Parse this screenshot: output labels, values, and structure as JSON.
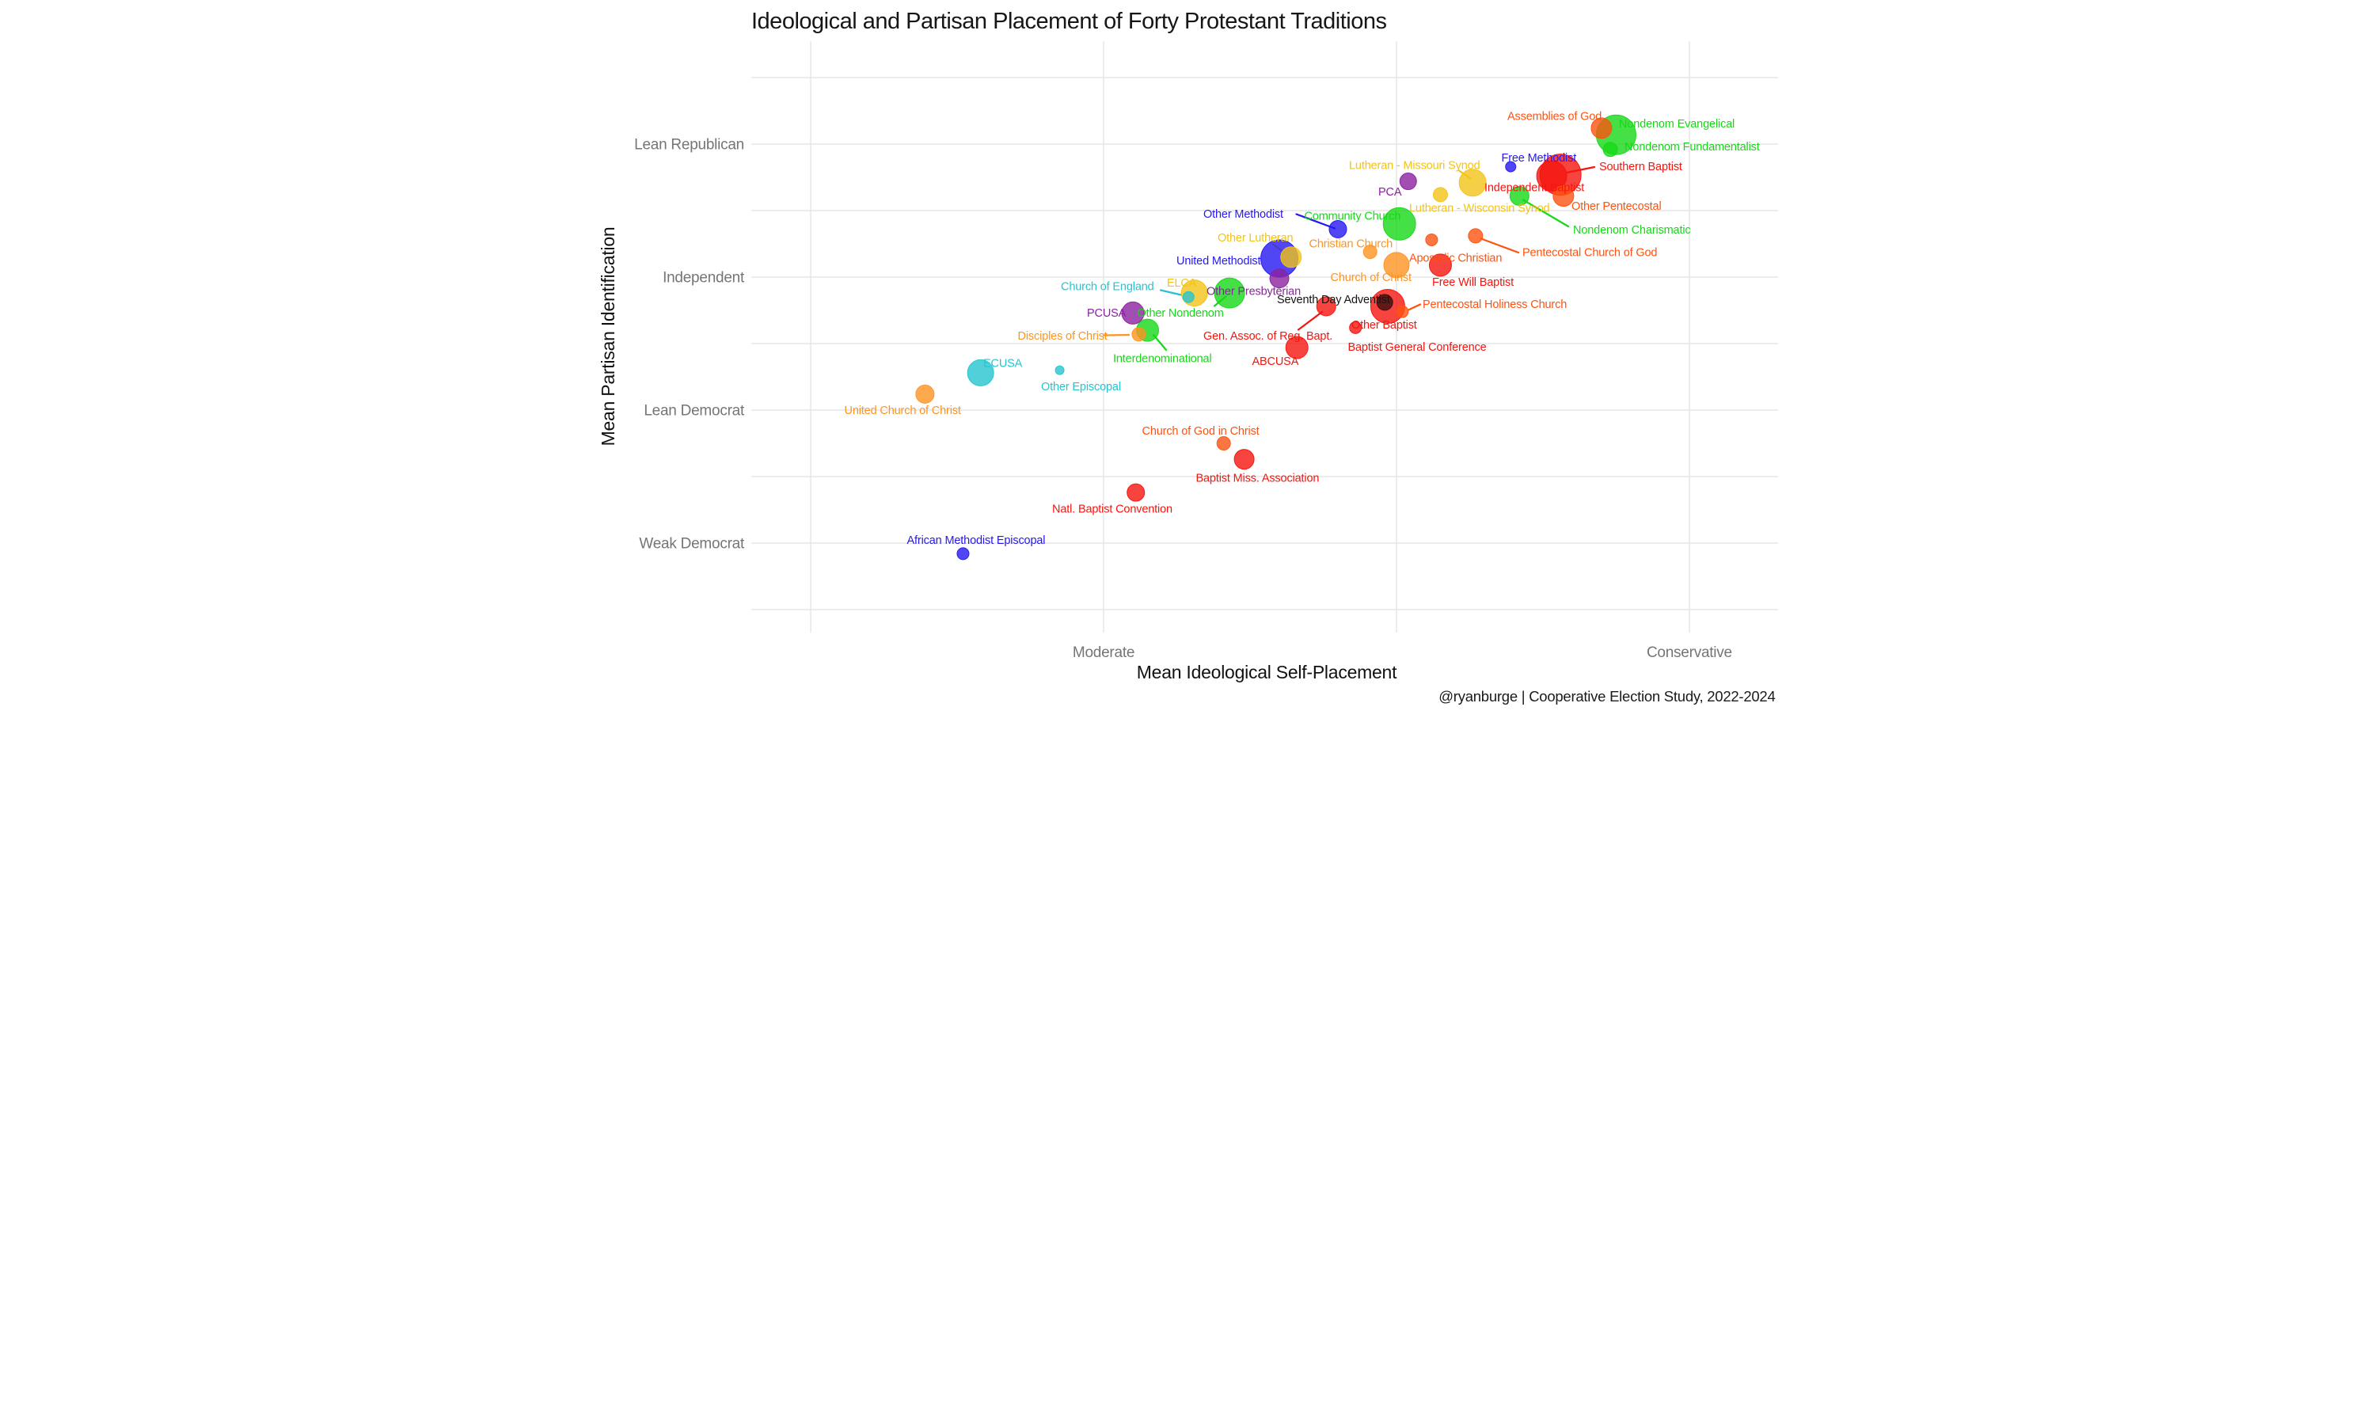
{
  "title": "Ideological and Partisan Placement of Forty Protestant Traditions",
  "caption": "@ryanburge | Cooperative Election Study, 2022-2024",
  "palette": {
    "baptist": "#f5150f",
    "methodist": "#2618f0",
    "nondenom": "#16d816",
    "lutheran": "#f3c317",
    "presbyterian": "#8b22a0",
    "episcopal": "#27c4cf",
    "pentecostal": "#fd5310",
    "restorationist": "#fe9420",
    "adventist": "#3c0f0c"
  },
  "chart_data": {
    "type": "scatter",
    "title": "Ideological and Partisan Placement of Forty Protestant Traditions",
    "xlabel": "Mean Ideological Self-Placement",
    "ylabel": "Mean Partisan Identification",
    "xlim": [
      1.797,
      5.303
    ],
    "ylim": [
      1.327,
      5.771
    ],
    "grid": {
      "x_values": [
        2,
        3,
        4,
        5
      ],
      "y_values": [
        5.5,
        5,
        4.5,
        4,
        3.5,
        3,
        2.5,
        2,
        1.5
      ]
    },
    "x_ticks": [
      {
        "label": "Moderate",
        "value": 3
      },
      {
        "label": "Conservative",
        "value": 5
      }
    ],
    "y_ticks": [
      {
        "label": "Lean Republican",
        "value": 5
      },
      {
        "label": "Independent",
        "value": 4
      },
      {
        "label": "Lean Democrat",
        "value": 3
      },
      {
        "label": "Weak Democrat",
        "value": 2
      }
    ],
    "legend": "none",
    "points": [
      {
        "name": "Nondenom Evangelical",
        "x": 4.75,
        "y": 5.07,
        "r": 50,
        "family": "nondenom",
        "lx": 2590,
        "ly": 322
      },
      {
        "name": "Nondenom Fundamentalist",
        "x": 4.73,
        "y": 4.96,
        "r": 18,
        "family": "nondenom",
        "lx": 2604,
        "ly": 380
      },
      {
        "name": "Assemblies of God",
        "x": 4.7,
        "y": 5.12,
        "r": 26,
        "family": "pentecostal",
        "lx": 2308,
        "ly": 303
      },
      {
        "name": "Southern Baptist",
        "x": 4.56,
        "y": 4.77,
        "r": 52,
        "family": "baptist",
        "lx": 2540,
        "ly": 430,
        "leader": [
          2528,
          422,
          2458,
          436
        ]
      },
      {
        "name": "Independent Baptist",
        "x": 4.53,
        "y": 4.76,
        "r": 38,
        "family": "baptist",
        "lx": 2250,
        "ly": 483
      },
      {
        "name": "Other Pentecostal",
        "x": 4.57,
        "y": 4.61,
        "r": 26,
        "family": "pentecostal",
        "lx": 2470,
        "ly": 530
      },
      {
        "name": "Nondenom Charismatic",
        "x": 4.42,
        "y": 4.61,
        "r": 24,
        "family": "nondenom",
        "lx": 2474,
        "ly": 590,
        "leader": [
          2348,
          505,
          2462,
          572
        ]
      },
      {
        "name": "Free Methodist",
        "x": 4.39,
        "y": 4.83,
        "r": 13,
        "family": "methodist",
        "lx": 2293,
        "ly": 408
      },
      {
        "name": "Lutheran - Missouri Synod",
        "x": 4.26,
        "y": 4.71,
        "r": 34,
        "family": "lutheran",
        "lx": 1908,
        "ly": 427,
        "leader": [
          2186,
          431,
          2215,
          451
        ]
      },
      {
        "name": "Lutheran - Wisconsin Synod",
        "x": 4.15,
        "y": 4.62,
        "r": 18,
        "family": "lutheran",
        "lx": 2060,
        "ly": 535
      },
      {
        "name": "PCA",
        "x": 4.04,
        "y": 4.72,
        "r": 21,
        "family": "presbyterian",
        "lx": 1982,
        "ly": 494
      },
      {
        "name": "Other Methodist",
        "x": 3.8,
        "y": 4.36,
        "r": 22,
        "family": "methodist",
        "lx": 1540,
        "ly": 550,
        "leader": [
          1775,
          541,
          1872,
          577
        ]
      },
      {
        "name": "Community Church",
        "x": 4.01,
        "y": 4.4,
        "r": 41,
        "family": "nondenom",
        "lx": 1795,
        "ly": 555
      },
      {
        "name": "Other Lutheran",
        "x": 3.64,
        "y": 4.15,
        "r": 26,
        "family": "lutheran",
        "lx": 1576,
        "ly": 610,
        "leader": [
          1716,
          616,
          1750,
          643
        ]
      },
      {
        "name": "United Methodist",
        "x": 3.6,
        "y": 4.14,
        "r": 47,
        "family": "methodist",
        "lx": 1472,
        "ly": 668
      },
      {
        "name": "Christian Church",
        "x": 3.91,
        "y": 4.19,
        "r": 17,
        "family": "restorationist",
        "lx": 1807,
        "ly": 625
      },
      {
        "name": "Church of Christ",
        "x": 4.0,
        "y": 4.09,
        "r": 32,
        "family": "restorationist",
        "lx": 1861,
        "ly": 710
      },
      {
        "name": "Apostolic Christian",
        "x": 4.12,
        "y": 4.28,
        "r": 15,
        "family": "pentecostal",
        "lx": 2060,
        "ly": 661
      },
      {
        "name": "Pentecostal Church of God",
        "x": 4.27,
        "y": 4.31,
        "r": 18,
        "family": "pentecostal",
        "lx": 2346,
        "ly": 647,
        "leader": [
          2242,
          603,
          2336,
          638
        ]
      },
      {
        "name": "Free Will Baptist",
        "x": 4.15,
        "y": 4.09,
        "r": 28,
        "family": "baptist",
        "lx": 2118,
        "ly": 722
      },
      {
        "name": "Seventh Day Adventist",
        "x": 3.96,
        "y": 3.81,
        "r": 20,
        "family": "adventist",
        "label_color": "#151515",
        "lx": 1726,
        "ly": 766
      },
      {
        "name": "Other Baptist",
        "x": 3.97,
        "y": 3.78,
        "r": 43,
        "family": "baptist",
        "lx": 1914,
        "ly": 830
      },
      {
        "name": "Pentecostal Holiness Church",
        "x": 4.02,
        "y": 3.74,
        "r": 15,
        "family": "pentecostal",
        "lx": 2094,
        "ly": 778,
        "leader": [
          2058,
          783,
          2088,
          769
        ]
      },
      {
        "name": "Gen. Assoc. of Reg. Bapt.",
        "x": 3.76,
        "y": 3.78,
        "r": 24,
        "family": "baptist",
        "lx": 1540,
        "ly": 858,
        "leader": [
          1840,
          788,
          1780,
          833
        ]
      },
      {
        "name": "ABCUSA",
        "x": 3.66,
        "y": 3.47,
        "r": 28,
        "family": "baptist",
        "lx": 1663,
        "ly": 922
      },
      {
        "name": "Baptist General Conference",
        "x": 3.86,
        "y": 3.62,
        "r": 15,
        "family": "baptist",
        "lx": 1905,
        "ly": 886
      },
      {
        "name": "Interdenominational",
        "x": 3.15,
        "y": 3.6,
        "r": 28,
        "family": "nondenom",
        "lx": 1312,
        "ly": 915,
        "leader": [
          1414,
          846,
          1446,
          884
        ]
      },
      {
        "name": "Other Nondenom",
        "x": 3.43,
        "y": 3.88,
        "r": 38,
        "family": "nondenom",
        "lx": 1373,
        "ly": 800,
        "leader": [
          1568,
          773,
          1597,
          749
        ]
      },
      {
        "name": "PCUSA",
        "x": 3.1,
        "y": 3.73,
        "r": 28,
        "family": "presbyterian",
        "lx": 1246,
        "ly": 800
      },
      {
        "name": "Disciples of Christ",
        "x": 3.12,
        "y": 3.57,
        "r": 17,
        "family": "restorationist",
        "lx": 1071,
        "ly": 858,
        "leader": [
          1288,
          847,
          1352,
          846
        ]
      },
      {
        "name": "ELCA",
        "x": 3.31,
        "y": 3.88,
        "r": 33,
        "family": "lutheran",
        "lx": 1448,
        "ly": 724
      },
      {
        "name": "Church of England",
        "x": 3.29,
        "y": 3.85,
        "r": 14,
        "family": "episcopal",
        "lx": 1180,
        "ly": 733,
        "leader": [
          1432,
          733,
          1484,
          745
        ]
      },
      {
        "name": "Other Presbyterian",
        "x": 3.6,
        "y": 3.99,
        "r": 24,
        "family": "presbyterian",
        "lx": 1548,
        "ly": 745
      },
      {
        "name": "ECUSA",
        "x": 2.58,
        "y": 3.28,
        "r": 33,
        "family": "episcopal",
        "lx": 984,
        "ly": 927
      },
      {
        "name": "Other Episcopal",
        "x": 2.85,
        "y": 3.3,
        "r": 11,
        "family": "episcopal",
        "lx": 1130,
        "ly": 986
      },
      {
        "name": "United Church of Christ",
        "x": 2.39,
        "y": 3.12,
        "r": 23,
        "family": "restorationist",
        "lx": 633,
        "ly": 1046
      },
      {
        "name": "Church of God in Christ",
        "x": 3.41,
        "y": 2.75,
        "r": 17,
        "family": "pentecostal",
        "lx": 1385,
        "ly": 1098
      },
      {
        "name": "Baptist Miss. Association",
        "x": 3.48,
        "y": 2.63,
        "r": 25,
        "family": "baptist",
        "lx": 1521,
        "ly": 1217
      },
      {
        "name": "Natl. Baptist Convention",
        "x": 3.11,
        "y": 2.38,
        "r": 22,
        "family": "baptist",
        "lx": 1158,
        "ly": 1295
      },
      {
        "name": "African Methodist Episcopal",
        "x": 2.52,
        "y": 1.92,
        "r": 15,
        "family": "methodist",
        "lx": 791,
        "ly": 1374
      }
    ]
  }
}
